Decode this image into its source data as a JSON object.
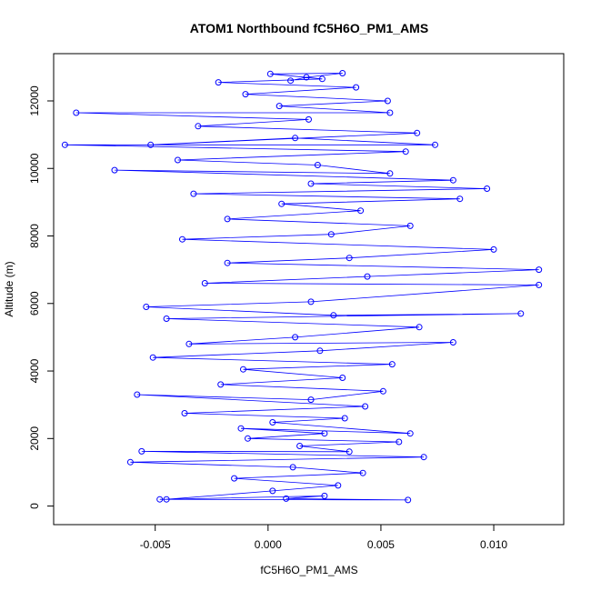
{
  "chart_data": {
    "type": "scatter",
    "title": "ATOM1 Northbound fC5H6O_PM1_AMS",
    "xlabel": "fC5H6O_PM1_AMS",
    "ylabel": "Altitude (m)",
    "xlim": [
      -0.0095,
      0.0131
    ],
    "ylim": [
      -550,
      13400
    ],
    "x_ticks": [
      -0.005,
      0.0,
      0.005,
      0.01
    ],
    "x_tick_labels": [
      "-0.005",
      "0.000",
      "0.005",
      "0.010"
    ],
    "y_ticks": [
      0,
      2000,
      4000,
      6000,
      8000,
      10000,
      12000
    ],
    "y_tick_labels": [
      "0",
      "2000",
      "4000",
      "6000",
      "8000",
      "10000",
      "12000"
    ],
    "marker": "open-circle",
    "connected": true,
    "color": "#0000ff",
    "grid": false,
    "series": [
      {
        "values": [
          [
            -0.0048,
            200
          ],
          [
            0.0062,
            180
          ],
          [
            0.0008,
            220
          ],
          [
            0.0025,
            300
          ],
          [
            -0.0045,
            200
          ],
          [
            0.0002,
            450
          ],
          [
            0.0031,
            610
          ],
          [
            -0.0015,
            820
          ],
          [
            0.0042,
            980
          ],
          [
            0.0011,
            1150
          ],
          [
            -0.0061,
            1300
          ],
          [
            0.0069,
            1450
          ],
          [
            -0.0056,
            1620
          ],
          [
            0.0036,
            1610
          ],
          [
            0.0014,
            1780
          ],
          [
            0.0058,
            1900
          ],
          [
            -0.0009,
            2000
          ],
          [
            0.0025,
            2150
          ],
          [
            -0.0012,
            2300
          ],
          [
            0.0063,
            2150
          ],
          [
            0.0002,
            2480
          ],
          [
            0.0034,
            2600
          ],
          [
            -0.0037,
            2750
          ],
          [
            0.0043,
            2950
          ],
          [
            -0.0058,
            3300
          ],
          [
            0.0019,
            3150
          ],
          [
            0.0051,
            3400
          ],
          [
            -0.0021,
            3600
          ],
          [
            0.0033,
            3800
          ],
          [
            -0.0011,
            4050
          ],
          [
            0.0055,
            4200
          ],
          [
            -0.0051,
            4400
          ],
          [
            0.0023,
            4600
          ],
          [
            0.0082,
            4850
          ],
          [
            -0.0035,
            4800
          ],
          [
            0.0012,
            5000
          ],
          [
            0.0067,
            5300
          ],
          [
            -0.0045,
            5550
          ],
          [
            0.0112,
            5700
          ],
          [
            0.0029,
            5650
          ],
          [
            -0.0054,
            5900
          ],
          [
            0.0019,
            6050
          ],
          [
            0.012,
            6550
          ],
          [
            -0.0028,
            6600
          ],
          [
            0.0044,
            6800
          ],
          [
            0.012,
            7000
          ],
          [
            -0.0018,
            7200
          ],
          [
            0.0036,
            7350
          ],
          [
            0.01,
            7600
          ],
          [
            -0.0038,
            7900
          ],
          [
            0.0028,
            8050
          ],
          [
            0.0063,
            8300
          ],
          [
            -0.0018,
            8500
          ],
          [
            0.0041,
            8750
          ],
          [
            0.0006,
            8950
          ],
          [
            0.0085,
            9100
          ],
          [
            -0.0033,
            9250
          ],
          [
            0.0097,
            9400
          ],
          [
            0.0019,
            9550
          ],
          [
            0.0082,
            9650
          ],
          [
            -0.0068,
            9950
          ],
          [
            0.0054,
            9850
          ],
          [
            0.0022,
            10100
          ],
          [
            -0.004,
            10250
          ],
          [
            0.0061,
            10500
          ],
          [
            -0.009,
            10700
          ],
          [
            0.0074,
            10700
          ],
          [
            0.0012,
            10900
          ],
          [
            -0.0052,
            10700
          ],
          [
            0.0066,
            11050
          ],
          [
            -0.0031,
            11250
          ],
          [
            0.0018,
            11450
          ],
          [
            -0.0085,
            11650
          ],
          [
            0.0054,
            11650
          ],
          [
            0.0005,
            11850
          ],
          [
            0.0053,
            12000
          ],
          [
            -0.001,
            12200
          ],
          [
            0.0039,
            12400
          ],
          [
            -0.0022,
            12550
          ],
          [
            0.0024,
            12650
          ],
          [
            0.0001,
            12800
          ],
          [
            0.0033,
            12820
          ],
          [
            0.0017,
            12700
          ],
          [
            0.001,
            12600
          ]
        ]
      }
    ]
  }
}
